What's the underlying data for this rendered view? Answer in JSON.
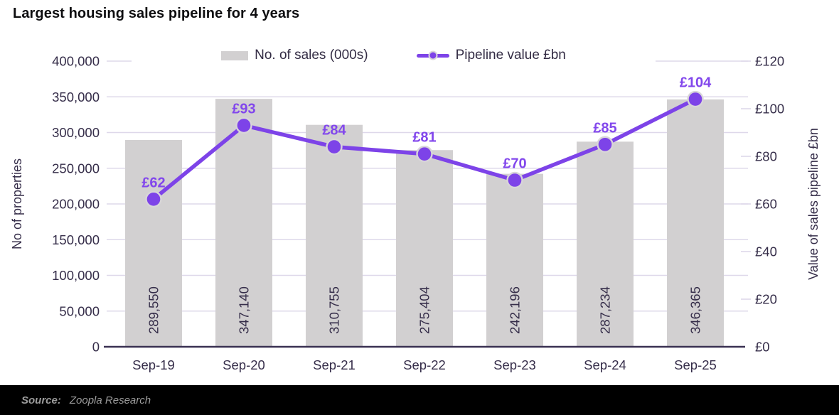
{
  "header": {
    "title": "Largest housing sales pipeline for 4 years"
  },
  "colors": {
    "title_text": "#0d0d0f",
    "axis_text": "#362e4a",
    "grid": "#ded8ea",
    "axis_line": "#3a3152",
    "bar_fill": "#d2d0d1",
    "line_purple": "#7d43e8",
    "line_label_purple": "#8247ec",
    "dot_ring": "#d8d5d9",
    "footer_bg": "#000000",
    "footer_text": "#9c9c9c"
  },
  "chart_data": {
    "type": "bar",
    "subtype": "combo-bar-line-dual-axis",
    "title": "Largest housing sales pipeline for 4 years",
    "categories": [
      "Sep-19",
      "Sep-20",
      "Sep-21",
      "Sep-22",
      "Sep-23",
      "Sep-24",
      "Sep-25"
    ],
    "series": [
      {
        "name": "No. of sales (000s)",
        "type": "bar",
        "axis": "left",
        "color": "#d2d0d1",
        "values": [
          289550,
          347140,
          310755,
          275404,
          242196,
          287234,
          346365
        ],
        "labels": [
          "289,550",
          "347,140",
          "310,755",
          "275,404",
          "242,196",
          "287,234",
          "346,365"
        ]
      },
      {
        "name": "Pipeline value £bn",
        "type": "line",
        "axis": "right",
        "color": "#7d43e8",
        "values": [
          62,
          93,
          84,
          81,
          70,
          85,
          104
        ],
        "labels": [
          "£62",
          "£93",
          "£84",
          "£81",
          "£70",
          "£85",
          "£104"
        ]
      }
    ],
    "left_axis": {
      "label": "No of properties",
      "min": 0,
      "max": 400000,
      "step": 50000,
      "tick_labels": [
        "0",
        "50,000",
        "100,000",
        "150,000",
        "200,000",
        "250,000",
        "300,000",
        "350,000",
        "400,000"
      ]
    },
    "right_axis": {
      "label": "Value of sales pipeline £bn",
      "min": 0,
      "max": 120,
      "step": 20,
      "tick_labels": [
        "£0",
        "£20",
        "£40",
        "£60",
        "£80",
        "£100",
        "£120"
      ]
    },
    "grid": true,
    "legend_position": "top"
  },
  "footer": {
    "source_label": "Source:",
    "source_value": "Zoopla Research"
  }
}
